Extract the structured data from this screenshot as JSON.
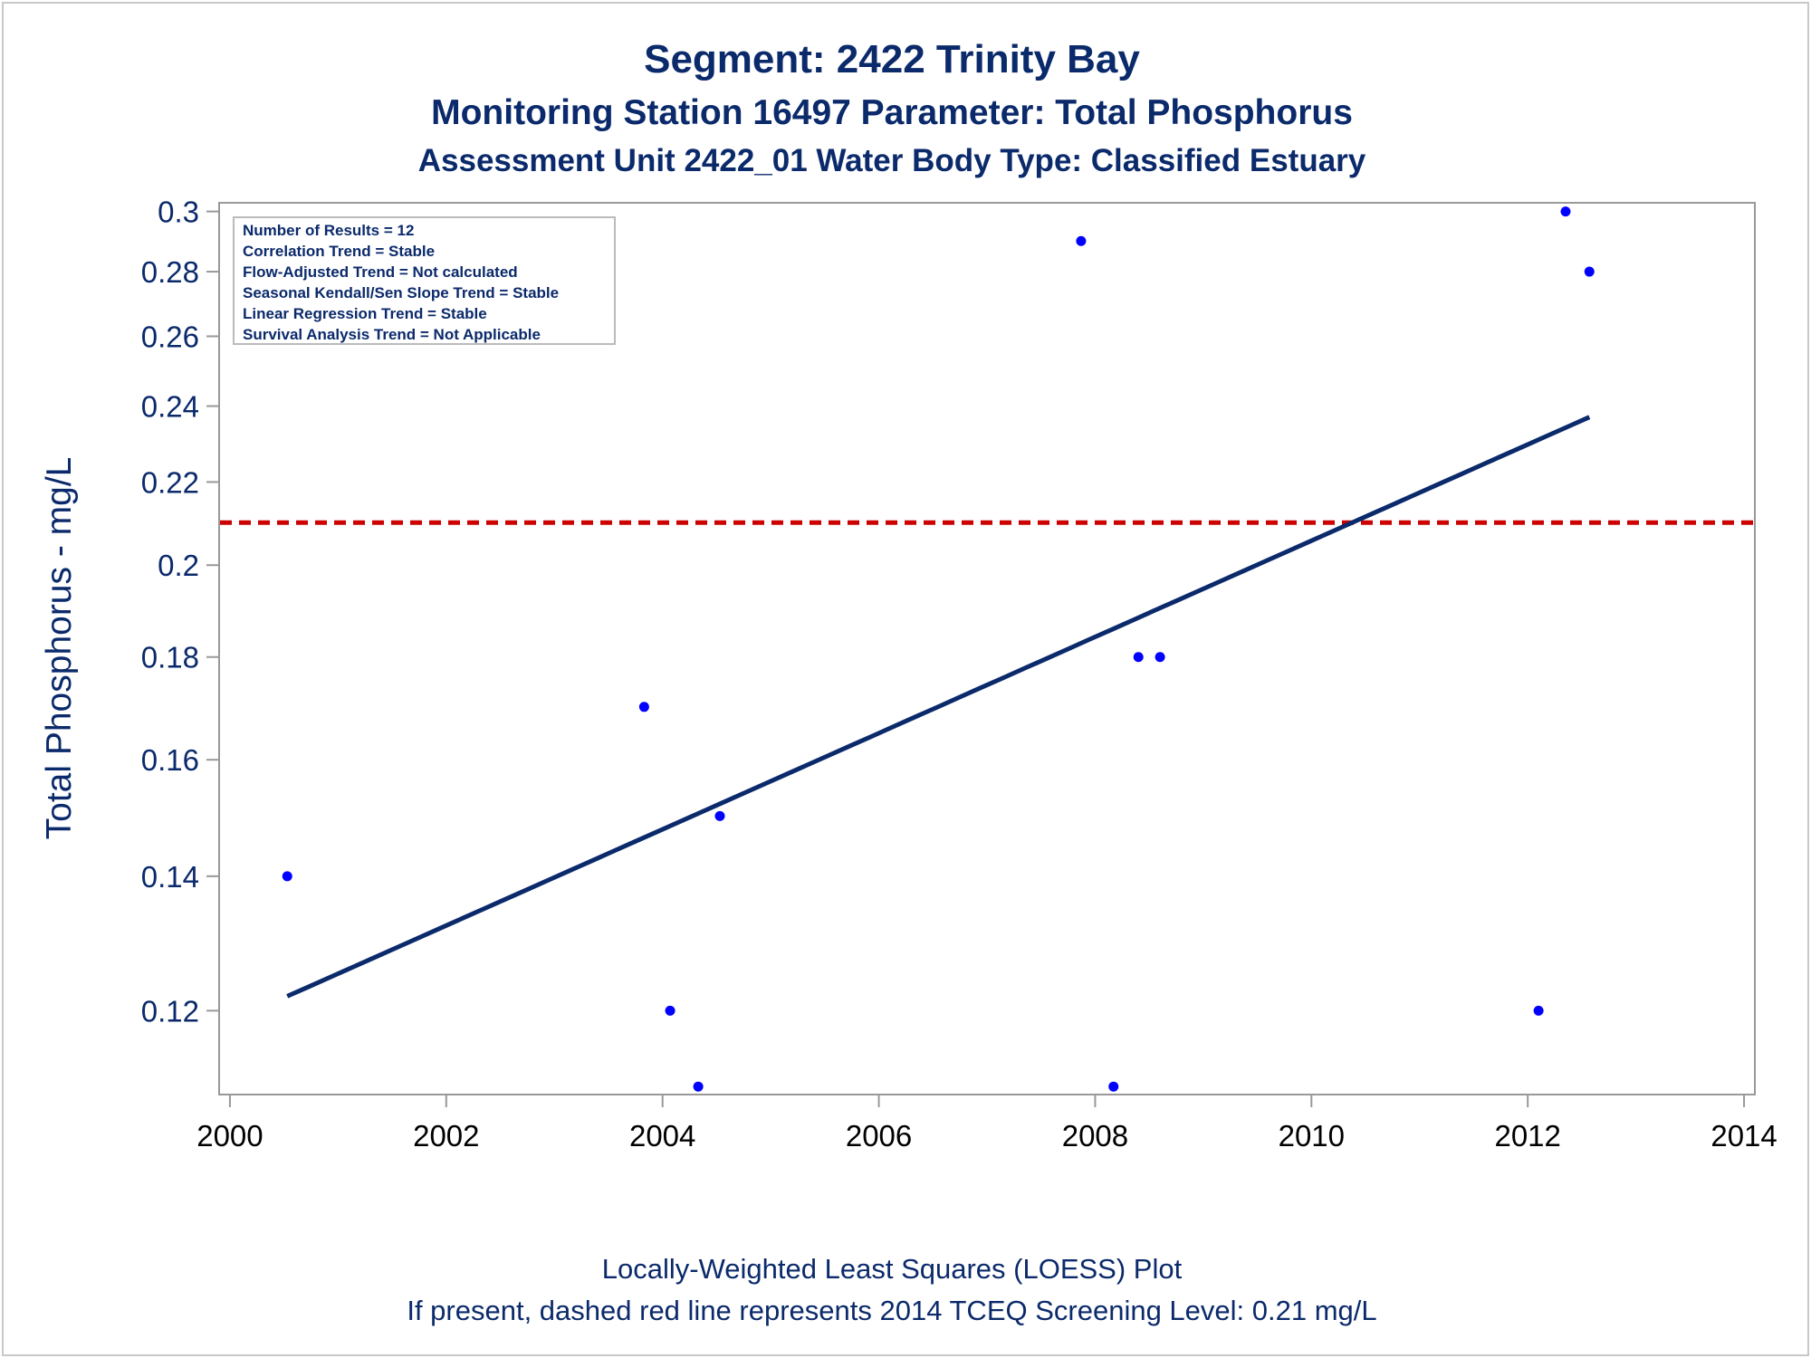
{
  "titles": {
    "line1": "Segment: 2422  Trinity Bay",
    "line2": "Monitoring Station 16497 Parameter: Total Phosphorus",
    "line3": "Assessment Unit 2422_01   Water Body Type: Classified Estuary"
  },
  "stats_box": {
    "lines": [
      "Number of Results = 12",
      "Correlation Trend = Stable",
      "Flow-Adjusted Trend = Not calculated",
      "Seasonal Kendall/Sen Slope Trend = Stable",
      "Linear Regression Trend = Stable",
      "Survival Analysis Trend = Not Applicable"
    ]
  },
  "footer": {
    "line1": "Locally-Weighted Least Squares (LOESS) Plot",
    "line2": "If present, dashed red line represents 2014 TCEQ Screening Level: 0.21 mg/L"
  },
  "chart_data": {
    "type": "scatter",
    "ylabel": "Total Phosphorus - mg/L",
    "xlabel": "",
    "y_scale": "log",
    "xlim": [
      1999.9,
      2014.1
    ],
    "ylim": [
      0.109,
      0.303
    ],
    "x_ticks": [
      2000,
      2002,
      2004,
      2006,
      2008,
      2010,
      2012,
      2014
    ],
    "y_ticks": [
      0.12,
      0.14,
      0.16,
      0.18,
      0.2,
      0.22,
      0.24,
      0.26,
      0.28,
      0.3
    ],
    "y_tick_labels": [
      "0.12",
      "0.14",
      "0.16",
      "0.18",
      "0.2",
      "0.22",
      "0.24",
      "0.26",
      "0.28",
      "0.3"
    ],
    "points": [
      {
        "x": 2000.53,
        "y": 0.14
      },
      {
        "x": 2003.83,
        "y": 0.17
      },
      {
        "x": 2004.07,
        "y": 0.12
      },
      {
        "x": 2004.33,
        "y": 0.11
      },
      {
        "x": 2004.53,
        "y": 0.15
      },
      {
        "x": 2007.87,
        "y": 0.29
      },
      {
        "x": 2008.17,
        "y": 0.11
      },
      {
        "x": 2008.4,
        "y": 0.18
      },
      {
        "x": 2008.6,
        "y": 0.18
      },
      {
        "x": 2012.1,
        "y": 0.12
      },
      {
        "x": 2012.35,
        "y": 0.3
      },
      {
        "x": 2012.57,
        "y": 0.28
      }
    ],
    "trend_line": {
      "x": [
        2000.53,
        2012.57
      ],
      "y": [
        0.122,
        0.237
      ]
    },
    "screening_level": 0.21,
    "colors": {
      "points": "#0000ff",
      "trend": "#0b2a6b",
      "screening": "#cc0000",
      "text": "#0b2a6b",
      "axis": "#999999"
    }
  }
}
